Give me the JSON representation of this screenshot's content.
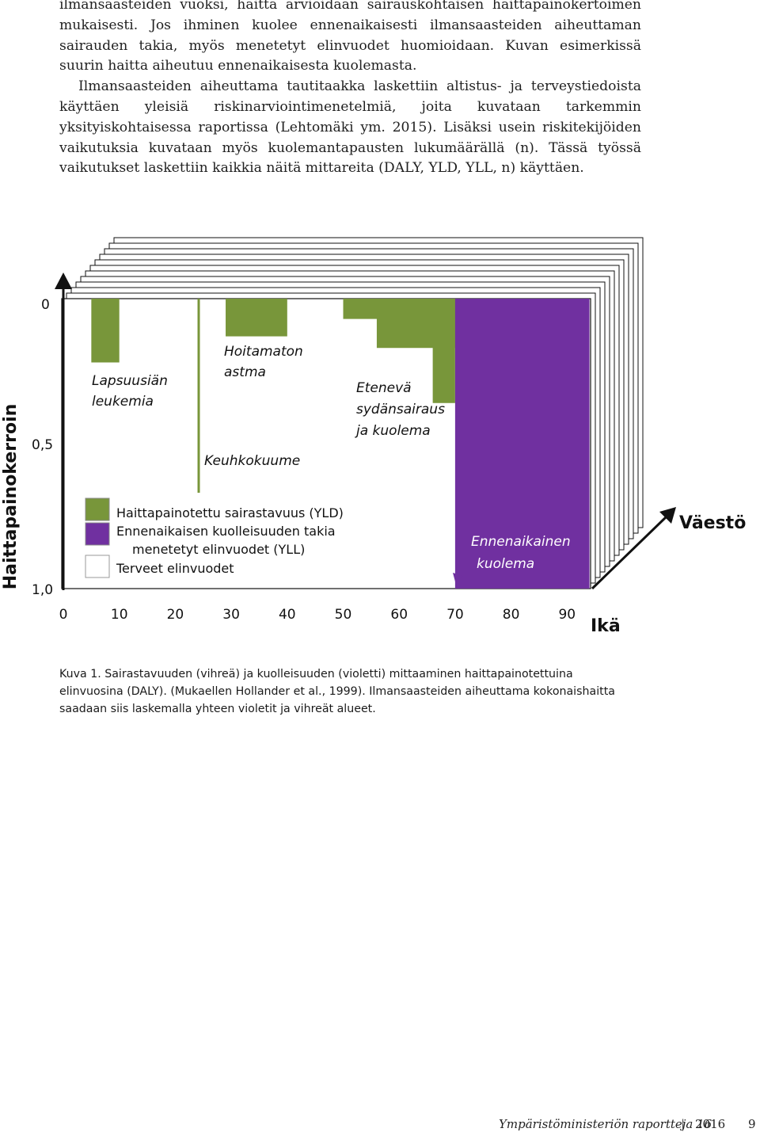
{
  "paragraphs": [
    "ilmansaasteiden vuoksi, haitta arvioidaan sairauskohtaisen haittapainokertoimen mukaisesti. Jos ihminen kuolee ennenaikaisesti ilmansaasteiden aiheuttaman sairauden takia, myös menetetyt elinvuodet huomioidaan. Kuvan esimerkissä suurin haitta aiheutuu ennenaikaisesta kuolemasta.",
    "Ilmansaasteiden aiheuttama tautitaakka laskettiin altistus- ja terveystiedoista käyttäen yleisiä riskinarviointimenetelmiä, joita kuvataan tarkemmin yksityiskohtaisessa raportissa (Lehtomäki ym. 2015). Lisäksi usein riskitekijöiden vaikutuksia kuvataan myös kuolemantapausten lukumäärällä (n). Tässä työssä vaikutukset laskettiin kaikkia näitä mittareita (DALY, YLD, YLL, n) käyttäen."
  ],
  "figure": {
    "y_axis_title": "Haittapainokerroin",
    "y_ticks": [
      "0",
      "0,5",
      "1,0"
    ],
    "x_ticks": [
      "0",
      "10",
      "20",
      "30",
      "40",
      "50",
      "60",
      "70",
      "80",
      "90"
    ],
    "x_axis_title": "Ikä",
    "depth_label": "Väestö",
    "annotations": {
      "leukemia": [
        "Lapsuusiän",
        "leukemia"
      ],
      "asthma": [
        "Hoitamaton",
        "astma"
      ],
      "lung_cancer": "Keuhkokuume",
      "heart": [
        "Etenevä",
        "sydänsairaus",
        "ja kuolema"
      ],
      "death": [
        "Ennenaikainen",
        "kuolema"
      ]
    },
    "legend": [
      {
        "label": "Haittapainotettu sairastavuus (YLD)",
        "color": "#78963a"
      },
      {
        "label": "Ennenaikaisen kuolleisuuden takia",
        "label2": "menetetyt elinvuodet (YLL)",
        "color": "#7030a0"
      },
      {
        "label": "Terveet elinvuodet",
        "color": "#ffffff"
      }
    ],
    "colors": {
      "yld": "#78963a",
      "yll": "#7030a0",
      "healthy": "#ffffff"
    },
    "conditions": [
      {
        "name": "Lapsuusiän leukemia",
        "age_from": 5,
        "age_to": 10,
        "weight": 0.22
      },
      {
        "name": "Hoitamaton astma",
        "age_from": 29,
        "age_to": 40,
        "weight": 0.13
      },
      {
        "name": "Etenevä sydänsairaus ja kuolema",
        "steps": [
          {
            "age_from": 50,
            "age_to": 70,
            "weight": 0.07
          },
          {
            "age_from": 56,
            "age_to": 70,
            "weight": 0.17
          },
          {
            "age_from": 66,
            "age_to": 70,
            "weight": 0.36
          }
        ]
      },
      {
        "name": "Ennenaikainen kuolema",
        "age_from": 70,
        "age_to": 94,
        "weight": 1.0
      }
    ]
  },
  "caption": "Kuva 1. Sairastavuuden (vihreä) ja kuolleisuuden (violetti) mittaaminen haittapainotettuina elinvuosina (DALY). (Mukaellen Hollander et al., 1999). Ilmansaasteiden aiheuttama kokonaishaitta saadaan siis laskemalla yhteen violetit ja vihreät alueet.",
  "footer": {
    "publication": "Ympäristöministeriön raportteja 16",
    "separator": "|",
    "year": "2016",
    "page": "9"
  }
}
